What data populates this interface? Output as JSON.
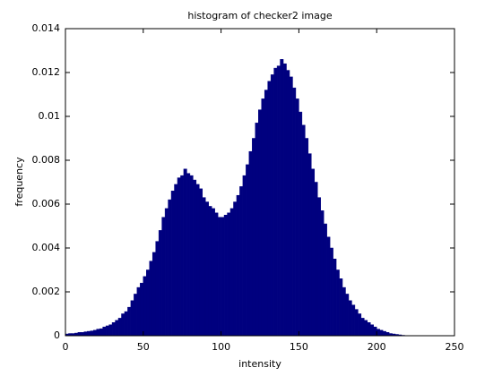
{
  "chart_data": {
    "type": "histogram",
    "title": "histogram of checker2 image",
    "xlabel": "intensity",
    "ylabel": "frequency",
    "color": "#00007f",
    "grid": false,
    "bins": [
      0,
      2,
      4,
      6,
      8,
      10,
      12,
      14,
      16,
      18,
      20,
      22,
      24,
      26,
      28,
      30,
      32,
      34,
      36,
      38,
      40,
      42,
      44,
      46,
      48,
      50,
      52,
      54,
      56,
      58,
      60,
      62,
      64,
      66,
      68,
      70,
      72,
      74,
      76,
      78,
      80,
      82,
      84,
      86,
      88,
      90,
      92,
      94,
      96,
      98,
      100,
      102,
      104,
      106,
      108,
      110,
      112,
      114,
      116,
      118,
      120,
      122,
      124,
      126,
      128,
      130,
      132,
      134,
      136,
      138,
      140,
      142,
      144,
      146,
      148,
      150,
      152,
      154,
      156,
      158,
      160,
      162,
      164,
      166,
      168,
      170,
      172,
      174,
      176,
      178,
      180,
      182,
      184,
      186,
      188,
      190,
      192,
      194,
      196,
      198,
      200,
      202,
      204,
      206,
      208,
      210,
      212,
      214,
      216,
      218,
      220,
      222,
      224,
      226,
      228,
      230,
      232,
      234,
      236,
      238,
      240
    ],
    "values": [
      8e-05,
      0.0001,
      0.0001,
      0.00012,
      0.00015,
      0.00015,
      0.00018,
      0.0002,
      0.00022,
      0.00025,
      0.0003,
      0.00032,
      0.0004,
      0.00045,
      0.0005,
      0.0006,
      0.0007,
      0.0008,
      0.001,
      0.0011,
      0.0013,
      0.0016,
      0.0019,
      0.0022,
      0.0024,
      0.0027,
      0.003,
      0.0034,
      0.0038,
      0.0043,
      0.0048,
      0.0054,
      0.0058,
      0.0062,
      0.0066,
      0.0069,
      0.0072,
      0.0073,
      0.0076,
      0.0074,
      0.0073,
      0.0071,
      0.0069,
      0.0067,
      0.0063,
      0.0061,
      0.0059,
      0.0058,
      0.0056,
      0.0054,
      0.0054,
      0.0055,
      0.0056,
      0.0058,
      0.0061,
      0.0064,
      0.0068,
      0.0073,
      0.0078,
      0.0084,
      0.009,
      0.0097,
      0.0103,
      0.0108,
      0.0112,
      0.0116,
      0.0119,
      0.0122,
      0.0123,
      0.0126,
      0.0124,
      0.0121,
      0.0118,
      0.0113,
      0.0108,
      0.0102,
      0.0096,
      0.009,
      0.0083,
      0.0076,
      0.007,
      0.0063,
      0.0057,
      0.0051,
      0.0045,
      0.004,
      0.0035,
      0.003,
      0.0026,
      0.0022,
      0.0019,
      0.0016,
      0.0014,
      0.0012,
      0.001,
      0.0008,
      0.0007,
      0.0006,
      0.0005,
      0.0004,
      0.0003,
      0.00025,
      0.0002,
      0.00015,
      0.0001,
      8e-05,
      6e-05,
      4e-05,
      2e-05,
      1e-05,
      0,
      0,
      0,
      0,
      0,
      0,
      0,
      0,
      0,
      0
    ],
    "xlim": [
      0,
      250
    ],
    "xticks": [
      0,
      50,
      100,
      150,
      200,
      250
    ],
    "ylim": [
      0,
      0.014
    ],
    "yticks": [
      0,
      0.002,
      0.004,
      0.006,
      0.008,
      0.01,
      0.012,
      0.014
    ]
  }
}
